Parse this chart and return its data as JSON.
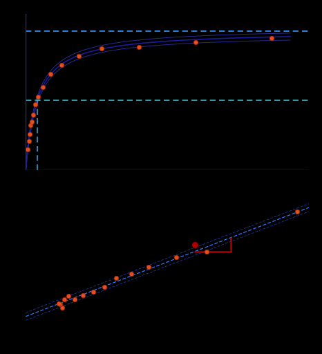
{
  "fig1a": {
    "Vmax": 1.0,
    "Km": 0.3,
    "curve_color": "#1a1a9c",
    "ci_color": "#3333bb",
    "dot_color": "#e05020",
    "dot_edge_color": "#aa2200",
    "hline_vmax_color": "#3399ff",
    "hline_half_color": "#33bbcc",
    "vline_km_color": "#4499cc",
    "hline_dash": [
      5,
      3
    ],
    "vline_dash": [
      5,
      3
    ]
  },
  "fig1b": {
    "line_color": "#3377ff",
    "dot_color": "#e05020",
    "dot_edge_color": "#aa2200",
    "slope_tri_color": "#aa0000"
  },
  "background_color": "#000000"
}
